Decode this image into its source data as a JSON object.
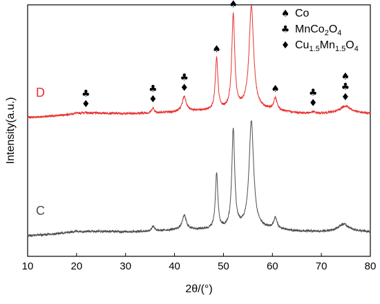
{
  "chart_data": {
    "type": "line",
    "xlabel": "2θ/(°)",
    "ylabel": "Intensity(a.u.)",
    "xlim": [
      10,
      80
    ],
    "x_ticks": [
      10,
      20,
      30,
      40,
      50,
      60,
      70,
      80
    ],
    "y_ticks_labeled": false,
    "grid": false,
    "legend_position": "top-right",
    "legend": [
      {
        "symbol": "♠",
        "label": "Co",
        "label_parts": [
          {
            "t": "Co"
          }
        ]
      },
      {
        "symbol": "♣",
        "label": "MnCo2O4",
        "label_parts": [
          {
            "t": "MnCo"
          },
          {
            "t": "2",
            "sub": true
          },
          {
            "t": "O"
          },
          {
            "t": "4",
            "sub": true
          }
        ]
      },
      {
        "symbol": "♦",
        "label": "Cu1.5Mn1.5O4",
        "label_parts": [
          {
            "t": "Cu"
          },
          {
            "t": "1.5",
            "sub": true
          },
          {
            "t": "Mn"
          },
          {
            "t": "1.5",
            "sub": true
          },
          {
            "t": "O"
          },
          {
            "t": "4",
            "sub": true
          }
        ]
      }
    ],
    "series": [
      {
        "name": "D",
        "color": "#e8302f",
        "baseline": [
          [
            10,
            0.0
          ],
          [
            15,
            0.03
          ],
          [
            20,
            0.09
          ],
          [
            25,
            0.1
          ],
          [
            30,
            0.09
          ],
          [
            35,
            0.1
          ],
          [
            40,
            0.12
          ],
          [
            45,
            0.15
          ],
          [
            50,
            0.16
          ],
          [
            55,
            0.2
          ],
          [
            60,
            0.16
          ],
          [
            65,
            0.1
          ],
          [
            70,
            0.09
          ],
          [
            75,
            0.12
          ],
          [
            80,
            0.09
          ]
        ],
        "peaks": [
          {
            "pos": 21.5,
            "height": 0.02,
            "width": 1.0
          },
          {
            "pos": 35.6,
            "height": 0.12,
            "width": 0.3
          },
          {
            "pos": 42.0,
            "height": 0.35,
            "width": 0.5
          },
          {
            "pos": 48.6,
            "height": 1.2,
            "width": 0.32
          },
          {
            "pos": 52.0,
            "height": 2.2,
            "width": 0.36
          },
          {
            "pos": 55.7,
            "height": 2.4,
            "width": 0.55
          },
          {
            "pos": 60.6,
            "height": 0.28,
            "width": 0.4
          },
          {
            "pos": 68.3,
            "height": 0.03,
            "width": 0.4
          },
          {
            "pos": 74.9,
            "height": 0.15,
            "width": 1.2
          }
        ]
      },
      {
        "name": "C",
        "color": "#4d4d4d",
        "baseline": [
          [
            10,
            0.0
          ],
          [
            15,
            0.03
          ],
          [
            20,
            0.1
          ],
          [
            25,
            0.1
          ],
          [
            30,
            0.09
          ],
          [
            35,
            0.1
          ],
          [
            40,
            0.13
          ],
          [
            45,
            0.14
          ],
          [
            50,
            0.14
          ],
          [
            55,
            0.17
          ],
          [
            60,
            0.15
          ],
          [
            65,
            0.1
          ],
          [
            70,
            0.09
          ],
          [
            75,
            0.12
          ],
          [
            80,
            0.08
          ]
        ],
        "peaks": [
          {
            "pos": 35.6,
            "height": 0.12,
            "width": 0.3
          },
          {
            "pos": 42.0,
            "height": 0.33,
            "width": 0.5
          },
          {
            "pos": 48.6,
            "height": 1.3,
            "width": 0.3
          },
          {
            "pos": 52.0,
            "height": 2.3,
            "width": 0.35
          },
          {
            "pos": 55.7,
            "height": 2.5,
            "width": 0.55
          },
          {
            "pos": 60.6,
            "height": 0.25,
            "width": 0.4
          },
          {
            "pos": 74.5,
            "height": 0.15,
            "width": 1.2
          }
        ]
      }
    ],
    "annotations": [
      {
        "x": 21.9,
        "symbols": [
          "♣",
          "♦"
        ]
      },
      {
        "x": 35.6,
        "symbols": [
          "♣",
          "♦"
        ]
      },
      {
        "x": 42.0,
        "symbols": [
          "♣",
          "♦"
        ]
      },
      {
        "x": 48.6,
        "symbols": [
          "♠"
        ]
      },
      {
        "x": 52.0,
        "symbols": [
          "♠"
        ]
      },
      {
        "x": 55.7,
        "symbols": [
          "♠"
        ]
      },
      {
        "x": 60.6,
        "symbols": [
          "♠"
        ]
      },
      {
        "x": 68.3,
        "symbols": [
          "♣",
          "♦"
        ]
      },
      {
        "x": 74.9,
        "symbols": [
          "♠",
          "♣",
          "♦"
        ]
      }
    ]
  }
}
